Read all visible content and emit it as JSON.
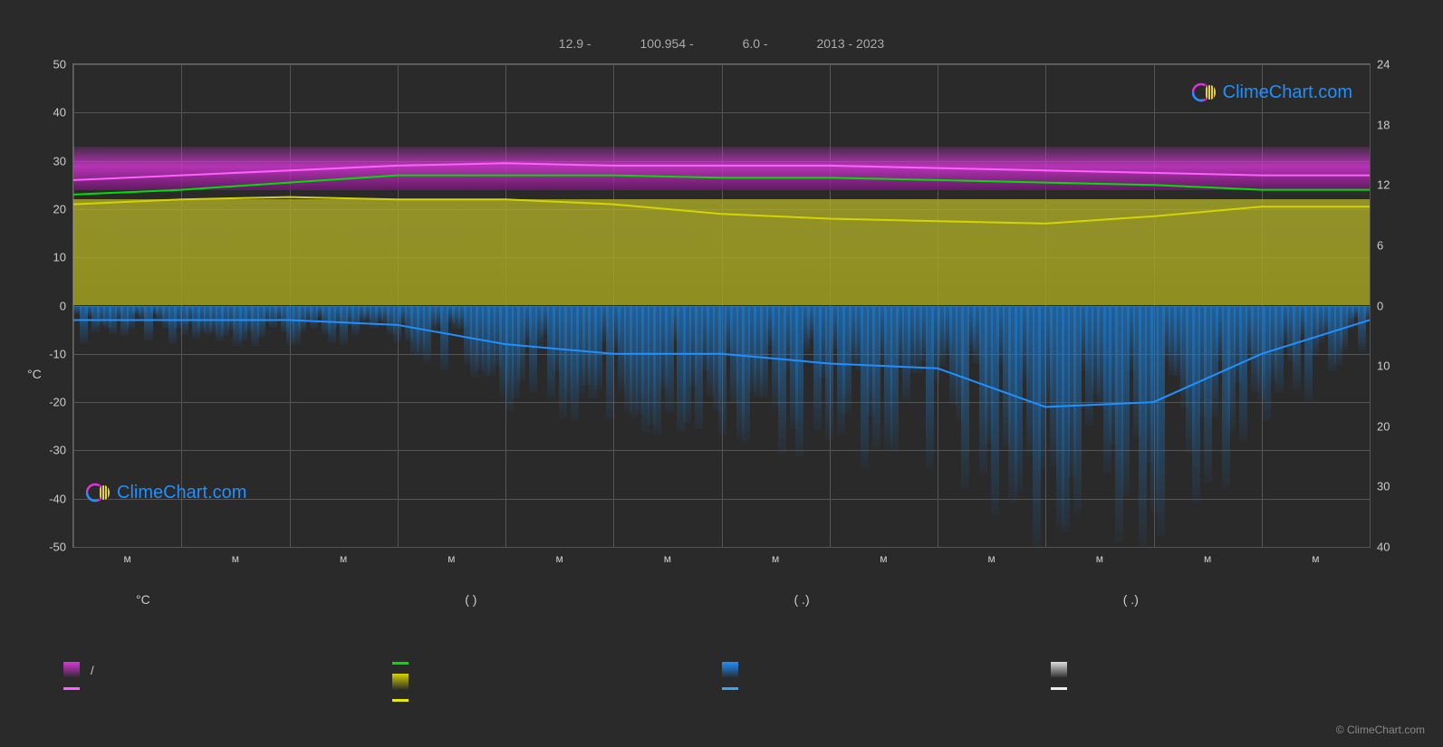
{
  "header": {
    "lat": "12.9 -",
    "lon": "100.954 -",
    "alt": "6.0 -",
    "years": "2013 - 2023"
  },
  "chart": {
    "type": "climate-chart",
    "background_color": "#2a2a2a",
    "grid_color": "#555555",
    "text_color": "#cccccc",
    "left_axis": {
      "title": "°C",
      "min": -50,
      "max": 50,
      "step": 10,
      "ticks": [
        50,
        40,
        30,
        20,
        10,
        0,
        -10,
        -20,
        -30,
        -40,
        -50
      ]
    },
    "right_axis": {
      "min_top": 24,
      "ticks_top": [
        24,
        18,
        12,
        6,
        0
      ],
      "ticks_bottom": [
        10,
        20,
        30,
        40
      ],
      "label_top": "(     )",
      "label_bottom": "/  ( . )"
    },
    "x_axis": {
      "months": [
        "м",
        "м",
        "м",
        "м",
        "м",
        "м",
        "м",
        "м",
        "м",
        "м",
        "м",
        "м"
      ]
    },
    "series": {
      "temp_max_band": {
        "color": "#d936d9",
        "glow_color": "#ff40ff",
        "top_pct": 16,
        "bottom_pct": 28,
        "line_y": [
          26.5,
          27,
          28,
          29,
          29,
          29,
          29,
          29,
          28.5,
          28,
          27.5,
          27
        ]
      },
      "temp_avg_line": {
        "color": "#00e000",
        "width": 2,
        "y": [
          23,
          24,
          25.5,
          27,
          27,
          27,
          26.5,
          26.5,
          26,
          25.5,
          25,
          24
        ]
      },
      "temp_min_line": {
        "color": "#ff60ff",
        "width": 2,
        "y": [
          26,
          27,
          28,
          29,
          29.5,
          29,
          29,
          29,
          28.5,
          28,
          27.5,
          27
        ]
      },
      "sun_band": {
        "color": "#d4d400",
        "fill_color": "#b8b830",
        "top_pct": 28,
        "bottom_pct": 50,
        "line_y": [
          21,
          22,
          22.5,
          22,
          22,
          21,
          19,
          18,
          17.5,
          17,
          18.5,
          20.5
        ]
      },
      "rain_band": {
        "color": "#1e90ff",
        "fill_color": "#2070b0",
        "top_pct": 50,
        "extent_pct": [
          55,
          56,
          58,
          62,
          72,
          75,
          75,
          78,
          90,
          92,
          85,
          60
        ],
        "line_y": [
          -3,
          -3,
          -3,
          -4,
          -8,
          -10,
          -10,
          -12,
          -13,
          -21,
          -20,
          -10,
          -3
        ]
      }
    }
  },
  "legend": {
    "headers": [
      "°C",
      "(          )",
      "(   .)",
      "(   .)"
    ],
    "col1": [
      {
        "type": "swatch",
        "color": "#d936d9",
        "gradient": true,
        "label": "/"
      },
      {
        "type": "line",
        "color": "#ff60ff",
        "label": ""
      }
    ],
    "col2": [
      {
        "type": "line",
        "color": "#00e000",
        "label": ""
      },
      {
        "type": "swatch",
        "color": "#d4d400",
        "gradient": true,
        "label": ""
      },
      {
        "type": "line",
        "color": "#e8e800",
        "label": ""
      }
    ],
    "col3": [
      {
        "type": "swatch",
        "color": "#1e90ff",
        "gradient": true,
        "label": ""
      },
      {
        "type": "line",
        "color": "#3ca0ff",
        "label": ""
      }
    ],
    "col4": [
      {
        "type": "swatch",
        "color": "#dddddd",
        "gradient": true,
        "label": ""
      },
      {
        "type": "line",
        "color": "#eeeeee",
        "label": ""
      }
    ]
  },
  "branding": {
    "name": "ClimeChart.com",
    "copyright": "© ClimeChart.com"
  }
}
